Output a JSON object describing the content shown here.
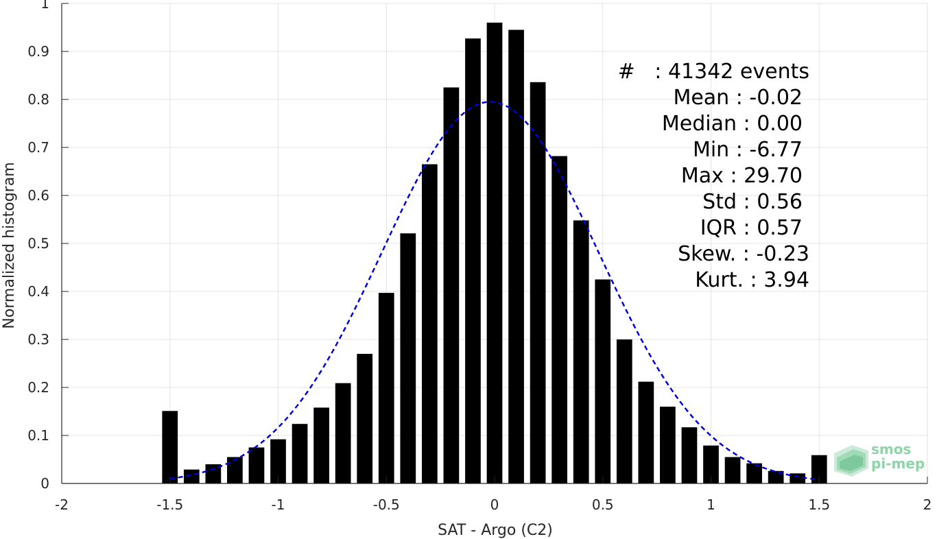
{
  "chart_data": {
    "type": "bar",
    "xlabel": "SAT - Argo (C2)",
    "ylabel": "Normalized histogram",
    "xlim": [
      -2,
      2
    ],
    "ylim": [
      0,
      1
    ],
    "xticks": [
      "-2",
      "-1.5",
      "-1",
      "-0.5",
      "0",
      "0.5",
      "1",
      "1.5",
      "2"
    ],
    "yticks": [
      "0",
      "0.1",
      "0.2",
      "0.3",
      "0.4",
      "0.5",
      "0.6",
      "0.7",
      "0.8",
      "0.9",
      "1"
    ],
    "grid": true,
    "bars": {
      "x": [
        -1.5,
        -1.4,
        -1.3,
        -1.2,
        -1.1,
        -1.0,
        -0.9,
        -0.8,
        -0.7,
        -0.6,
        -0.5,
        -0.4,
        -0.3,
        -0.2,
        -0.1,
        0.0,
        0.1,
        0.2,
        0.3,
        0.4,
        0.5,
        0.6,
        0.7,
        0.8,
        0.9,
        1.0,
        1.1,
        1.2,
        1.3,
        1.4,
        1.5
      ],
      "values": [
        0.151,
        0.029,
        0.04,
        0.055,
        0.075,
        0.092,
        0.124,
        0.158,
        0.209,
        0.27,
        0.397,
        0.521,
        0.665,
        0.825,
        0.927,
        0.96,
        0.945,
        0.836,
        0.682,
        0.548,
        0.425,
        0.3,
        0.212,
        0.16,
        0.117,
        0.079,
        0.055,
        0.042,
        0.026,
        0.021,
        0.059
      ],
      "color": "#000000"
    },
    "fit_curve": {
      "style": "dashed",
      "color": "#0000dd",
      "mean": -0.02,
      "std": 0.5,
      "peak": 0.795,
      "x_range": [
        -1.5,
        1.5
      ]
    }
  },
  "stats": {
    "events": "#   : 41342 events",
    "mean": "Mean : -0.02",
    "median": "Median : 0.00",
    "min": "Min : -6.77",
    "max": "Max : 29.70",
    "std": "Std : 0.56",
    "iqr": "IQR : 0.57",
    "skew": "Skew. : -0.23",
    "kurt": "Kurt. : 3.94"
  },
  "logo": {
    "line1": "smos",
    "line2": "pi-mep",
    "color": "#8fd3a8",
    "icon": "smos-pimep-logo-icon"
  }
}
